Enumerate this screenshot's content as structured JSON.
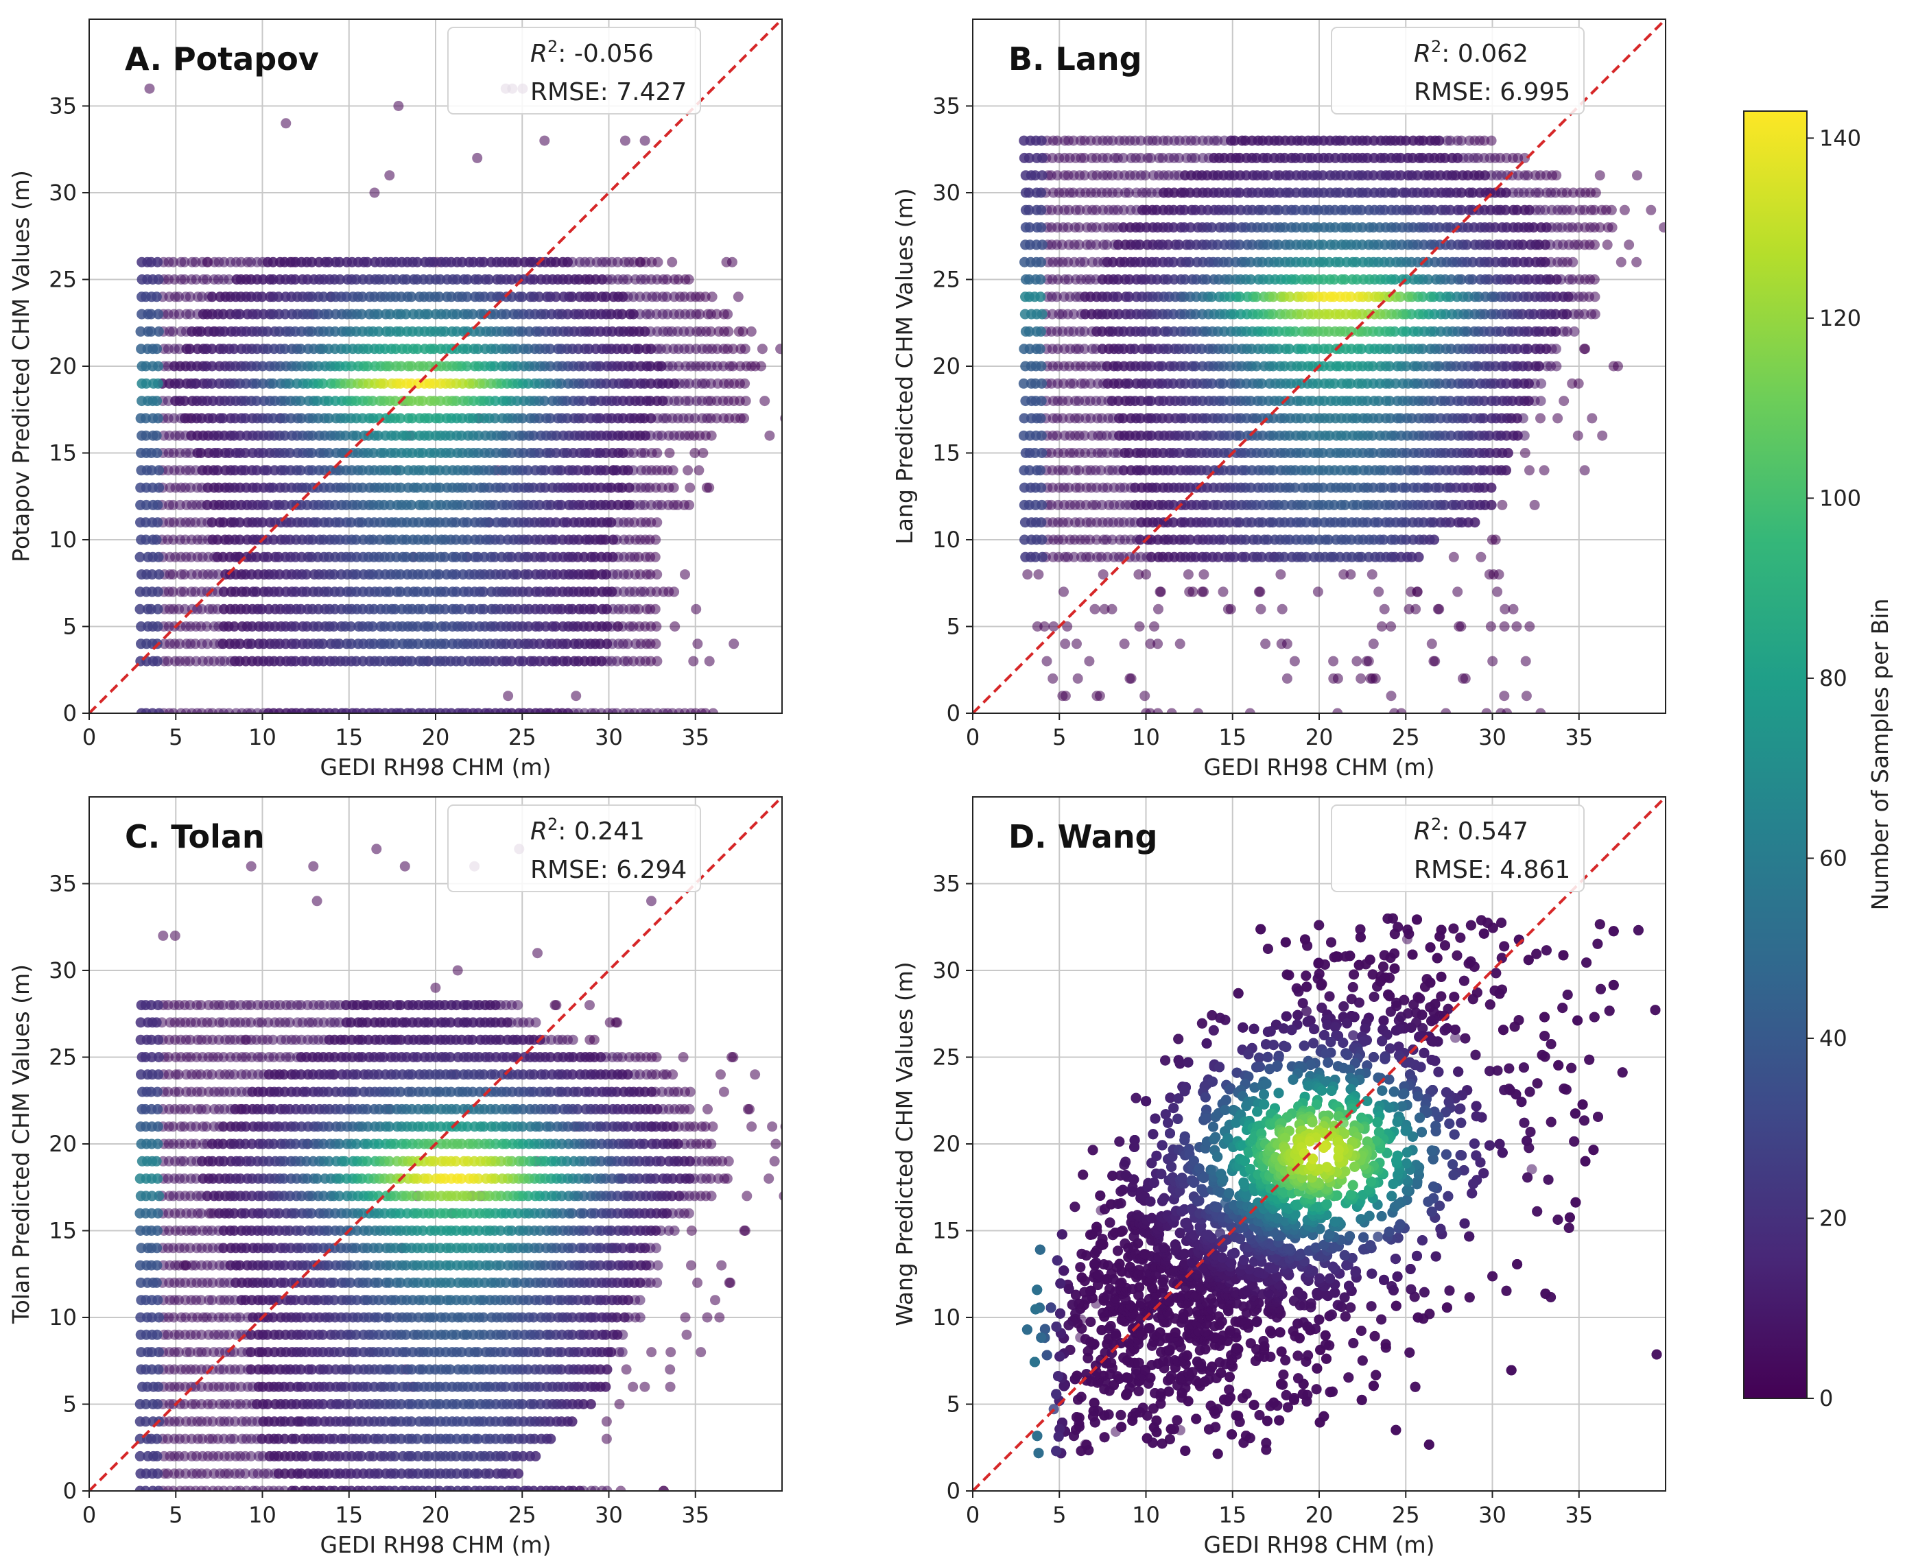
{
  "chart_data": {
    "type": "scatter",
    "figure": "Four-panel density scatter comparison of predicted CHM versus GEDI RH98 CHM",
    "panels": [
      {
        "id": "A",
        "title": "A. Potapov",
        "stats": {
          "r2_label": "R",
          "r2_exp": "2",
          "r2_value": ": -0.056",
          "rmse_text": "RMSE: 7.427",
          "r2": -0.056,
          "rmse": 7.427
        },
        "xlabel": "GEDI RH98 CHM (m)",
        "ylabel": "Potapov Predicted CHM Values (m)",
        "xlim": [
          0,
          40
        ],
        "ylim": [
          0,
          40
        ],
        "xticks": [
          0,
          5,
          10,
          15,
          20,
          25,
          30,
          35
        ],
        "yticks": [
          0,
          5,
          10,
          15,
          20,
          25,
          30,
          35
        ],
        "pattern": "discrete_rows",
        "rows": [
          {
            "y": 0,
            "x_end": 36,
            "peak": 0.08
          },
          {
            "y": 3,
            "x_end": 33,
            "peak": 0.15
          },
          {
            "y": 4,
            "x_end": 33,
            "peak": 0.2
          },
          {
            "y": 5,
            "x_end": 33,
            "peak": 0.2
          },
          {
            "y": 6,
            "x_end": 33,
            "peak": 0.2
          },
          {
            "y": 7,
            "x_end": 34,
            "peak": 0.2
          },
          {
            "y": 8,
            "x_end": 33,
            "peak": 0.2
          },
          {
            "y": 9,
            "x_end": 33,
            "peak": 0.22
          },
          {
            "y": 10,
            "x_end": 33,
            "peak": 0.25
          },
          {
            "y": 11,
            "x_end": 33,
            "peak": 0.25
          },
          {
            "y": 12,
            "x_end": 35,
            "peak": 0.3
          },
          {
            "y": 13,
            "x_end": 34,
            "peak": 0.3
          },
          {
            "y": 14,
            "x_end": 34,
            "peak": 0.35
          },
          {
            "y": 15,
            "x_end": 33,
            "peak": 0.4
          },
          {
            "y": 16,
            "x_end": 36,
            "peak": 0.45
          },
          {
            "y": 17,
            "x_end": 38,
            "peak": 0.55
          },
          {
            "y": 18,
            "x_end": 38,
            "peak": 0.75
          },
          {
            "y": 19,
            "x_end": 38,
            "peak": 0.95
          },
          {
            "y": 20,
            "x_end": 39,
            "peak": 0.7
          },
          {
            "y": 21,
            "x_end": 38,
            "peak": 0.55
          },
          {
            "y": 22,
            "x_end": 37,
            "peak": 0.45
          },
          {
            "y": 23,
            "x_end": 37,
            "peak": 0.35
          },
          {
            "y": 24,
            "x_end": 36,
            "peak": 0.25
          },
          {
            "y": 25,
            "x_end": 35,
            "peak": 0.15
          },
          {
            "y": 26,
            "x_end": 33,
            "peak": 0.08
          }
        ],
        "peak": {
          "x": 19,
          "y": 19
        }
      },
      {
        "id": "B",
        "title": "B. Lang",
        "stats": {
          "r2_label": "R",
          "r2_exp": "2",
          "r2_value": ": 0.062",
          "rmse_text": "RMSE: 6.995",
          "r2": 0.062,
          "rmse": 6.995
        },
        "xlabel": "GEDI RH98 CHM (m)",
        "ylabel": "Lang Predicted CHM Values (m)",
        "xlim": [
          0,
          40
        ],
        "ylim": [
          0,
          40
        ],
        "xticks": [
          0,
          5,
          10,
          15,
          20,
          25,
          30,
          35
        ],
        "yticks": [
          0,
          5,
          10,
          15,
          20,
          25,
          30,
          35
        ],
        "pattern": "discrete_rows",
        "rows": [
          {
            "y": 9,
            "x_end": 26,
            "peak": 0.15
          },
          {
            "y": 10,
            "x_end": 27,
            "peak": 0.2
          },
          {
            "y": 11,
            "x_end": 29,
            "peak": 0.2
          },
          {
            "y": 12,
            "x_end": 30,
            "peak": 0.25
          },
          {
            "y": 13,
            "x_end": 30,
            "peak": 0.25
          },
          {
            "y": 14,
            "x_end": 31,
            "peak": 0.3
          },
          {
            "y": 15,
            "x_end": 31,
            "peak": 0.3
          },
          {
            "y": 16,
            "x_end": 32,
            "peak": 0.35
          },
          {
            "y": 17,
            "x_end": 32,
            "peak": 0.35
          },
          {
            "y": 18,
            "x_end": 33,
            "peak": 0.4
          },
          {
            "y": 19,
            "x_end": 33,
            "peak": 0.45
          },
          {
            "y": 20,
            "x_end": 34,
            "peak": 0.5
          },
          {
            "y": 21,
            "x_end": 34,
            "peak": 0.55
          },
          {
            "y": 22,
            "x_end": 35,
            "peak": 0.7
          },
          {
            "y": 23,
            "x_end": 36,
            "peak": 0.85
          },
          {
            "y": 24,
            "x_end": 36,
            "peak": 0.95
          },
          {
            "y": 25,
            "x_end": 36,
            "peak": 0.6
          },
          {
            "y": 26,
            "x_end": 35,
            "peak": 0.45
          },
          {
            "y": 27,
            "x_end": 36,
            "peak": 0.35
          },
          {
            "y": 28,
            "x_end": 37,
            "peak": 0.3
          },
          {
            "y": 29,
            "x_end": 37,
            "peak": 0.2
          },
          {
            "y": 30,
            "x_end": 36,
            "peak": 0.12
          },
          {
            "y": 31,
            "x_end": 34,
            "peak": 0.08
          },
          {
            "y": 32,
            "x_end": 32,
            "peak": 0.05
          },
          {
            "y": 33,
            "x_end": 30,
            "peak": 0.04
          }
        ],
        "peak": {
          "x": 21,
          "y": 23
        }
      },
      {
        "id": "C",
        "title": "C. Tolan",
        "stats": {
          "r2_label": "R",
          "r2_exp": "2",
          "r2_value": ": 0.241",
          "rmse_text": "RMSE: 6.294",
          "r2": 0.241,
          "rmse": 6.294
        },
        "xlabel": "GEDI RH98 CHM (m)",
        "ylabel": "Tolan Predicted CHM Values (m)",
        "xlim": [
          0,
          40
        ],
        "ylim": [
          0,
          40
        ],
        "xticks": [
          0,
          5,
          10,
          15,
          20,
          25,
          30,
          35
        ],
        "yticks": [
          0,
          5,
          10,
          15,
          20,
          25,
          30,
          35
        ],
        "pattern": "discrete_rows",
        "rows": [
          {
            "y": 0,
            "x_end": 30,
            "peak": 0.1
          },
          {
            "y": 1,
            "x_end": 25,
            "peak": 0.12
          },
          {
            "y": 2,
            "x_end": 26,
            "peak": 0.15
          },
          {
            "y": 3,
            "x_end": 27,
            "peak": 0.18
          },
          {
            "y": 4,
            "x_end": 28,
            "peak": 0.18
          },
          {
            "y": 5,
            "x_end": 29,
            "peak": 0.2
          },
          {
            "y": 6,
            "x_end": 30,
            "peak": 0.2
          },
          {
            "y": 7,
            "x_end": 30,
            "peak": 0.22
          },
          {
            "y": 8,
            "x_end": 31,
            "peak": 0.22
          },
          {
            "y": 9,
            "x_end": 31,
            "peak": 0.25
          },
          {
            "y": 10,
            "x_end": 32,
            "peak": 0.25
          },
          {
            "y": 11,
            "x_end": 32,
            "peak": 0.3
          },
          {
            "y": 12,
            "x_end": 33,
            "peak": 0.35
          },
          {
            "y": 13,
            "x_end": 33,
            "peak": 0.4
          },
          {
            "y": 14,
            "x_end": 33,
            "peak": 0.45
          },
          {
            "y": 15,
            "x_end": 34,
            "peak": 0.5
          },
          {
            "y": 16,
            "x_end": 35,
            "peak": 0.6
          },
          {
            "y": 17,
            "x_end": 36,
            "peak": 0.8
          },
          {
            "y": 18,
            "x_end": 37,
            "peak": 0.95
          },
          {
            "y": 19,
            "x_end": 37,
            "peak": 0.9
          },
          {
            "y": 20,
            "x_end": 36,
            "peak": 0.7
          },
          {
            "y": 21,
            "x_end": 36,
            "peak": 0.5
          },
          {
            "y": 22,
            "x_end": 35,
            "peak": 0.35
          },
          {
            "y": 23,
            "x_end": 35,
            "peak": 0.25
          },
          {
            "y": 24,
            "x_end": 34,
            "peak": 0.15
          },
          {
            "y": 25,
            "x_end": 33,
            "peak": 0.08
          },
          {
            "y": 26,
            "x_end": 28,
            "peak": 0.05
          },
          {
            "y": 27,
            "x_end": 26,
            "peak": 0.04
          },
          {
            "y": 28,
            "x_end": 25,
            "peak": 0.04
          }
        ],
        "peak": {
          "x": 21,
          "y": 18.5
        }
      },
      {
        "id": "D",
        "title": "D. Wang",
        "stats": {
          "r2_label": "R",
          "r2_exp": "2",
          "r2_value": ": 0.547",
          "rmse_text": "RMSE: 4.861",
          "r2": 0.547,
          "rmse": 4.861
        },
        "xlabel": "GEDI RH98 CHM (m)",
        "ylabel": "Wang Predicted CHM Values (m)",
        "xlim": [
          0,
          40
        ],
        "ylim": [
          0,
          40
        ],
        "xticks": [
          0,
          5,
          10,
          15,
          20,
          25,
          30,
          35
        ],
        "yticks": [
          0,
          5,
          10,
          15,
          20,
          25,
          30,
          35
        ],
        "pattern": "continuous",
        "trend": {
          "slope": 0.7,
          "intercept": 4.5,
          "spread": 5.5
        },
        "peak": {
          "x": 20,
          "y": 19.5
        },
        "secondary_peak": {
          "x": 3.5,
          "y": 4.5
        }
      }
    ],
    "reference_line": {
      "label": "1:1",
      "color": "#d62728",
      "style": "dashed"
    },
    "colorbar": {
      "label": "Number of Samples per Bin",
      "min": 0,
      "max": 143,
      "ticks": [
        0,
        20,
        40,
        60,
        80,
        100,
        120,
        140
      ],
      "colormap": "viridis"
    }
  },
  "colors": {
    "viridis": [
      "#440154",
      "#482878",
      "#3e4989",
      "#31688e",
      "#26828e",
      "#1f9e89",
      "#35b779",
      "#6ece58",
      "#b5de2b",
      "#fde725"
    ],
    "grid": "#c8c8c8",
    "reference": "#d62728"
  }
}
